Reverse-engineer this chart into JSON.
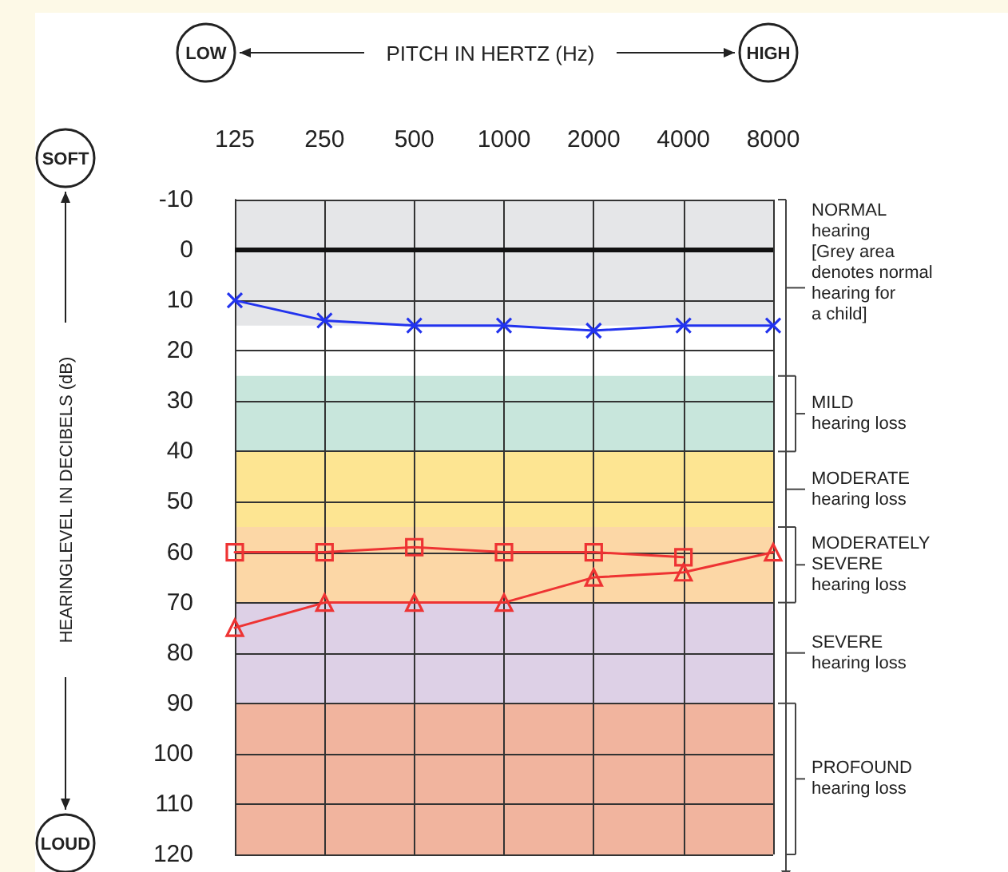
{
  "chart_data": {
    "type": "line",
    "xlabel": "PITCH IN HERTZ (Hz)",
    "ylabel": "HEARINGLEVEL IN DECIBELS (dB)",
    "annotations": [
      "LOW",
      "HIGH",
      "SOFT",
      "LOUD"
    ],
    "categories": [
      "125",
      "250",
      "500",
      "1000",
      "2000",
      "4000",
      "8000"
    ],
    "series": [
      {
        "color": "#2233ee",
        "marker": "cross",
        "values": [
          10,
          14,
          15,
          15,
          16,
          15,
          15
        ]
      },
      {
        "color": "#ee3333",
        "marker": "square",
        "values": [
          60,
          60,
          59,
          60,
          60,
          61,
          null
        ]
      },
      {
        "color": "#ee3333",
        "marker": "triangle",
        "values": [
          75,
          70,
          70,
          70,
          65,
          64,
          60
        ]
      }
    ],
    "ylim": [
      120,
      -10
    ],
    "yticks": [
      -10,
      0,
      10,
      20,
      30,
      40,
      50,
      60,
      70,
      80,
      90,
      100,
      110,
      120
    ],
    "grid": true,
    "line_style": "solid",
    "ref_lines": [
      {
        "axis": "y",
        "value": 0,
        "color": "#111111"
      }
    ],
    "bands": [
      {
        "axis": "y",
        "from": -10,
        "to": 15,
        "color": "#e5e6e8",
        "label": "NORMAL\nhearing\n[Grey area\ndenotes normal\nhearing for\na child]"
      },
      {
        "axis": "y",
        "from": 25,
        "to": 40,
        "color": "#c8e6dc",
        "label": "MILD\nhearing loss"
      },
      {
        "axis": "y",
        "from": 40,
        "to": 55,
        "color": "#fde592",
        "label": "MODERATE\nhearing loss"
      },
      {
        "axis": "y",
        "from": 55,
        "to": 70,
        "color": "#fcd7a6",
        "label": "MODERATELY\nSEVERE\nhearing loss"
      },
      {
        "axis": "y",
        "from": 70,
        "to": 90,
        "color": "#ddd0e6",
        "label": "SEVERE\nhearing loss"
      },
      {
        "axis": "y",
        "from": 90,
        "to": 120,
        "color": "#f1b49e",
        "label": "PROFOUND\nhearing loss"
      }
    ]
  }
}
